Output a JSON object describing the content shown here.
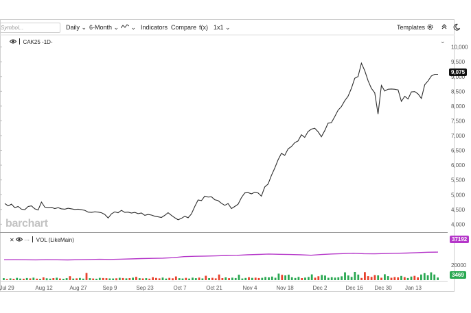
{
  "toolbar": {
    "symbol_placeholder": "Symbol...",
    "interval": "Daily",
    "range": "6-Month",
    "indicators": "Indicators",
    "compare": "Compare",
    "fx": "f(x)",
    "layout": "1x1",
    "templates": "Templates",
    "chevron": "⌄",
    "chart_type_icon": "line-chart-icon",
    "settings_icon": "gear-icon",
    "collapse_icon": "double-chevron-up-icon",
    "theme_icon": "dark-mode-icon"
  },
  "main_legend": {
    "symbol": "CAK25 -1D-",
    "eye_icon": "eye-icon",
    "collapse": "⌄"
  },
  "vol_legend": {
    "label": "VOL (LikeMain)",
    "close_icon": "close-icon",
    "eye_icon": "eye-icon",
    "more": "···"
  },
  "watermark": "barchart",
  "badges": {
    "price": "9,075",
    "vol_avg": "37192",
    "volume": "3469"
  },
  "colors": {
    "price_line": "#2b2b2b",
    "avg_line": "#b537c9",
    "up": "#2aa852",
    "down": "#e8412c",
    "price_badge": "#111111",
    "avg_badge": "#b537c9",
    "vol_badge": "#2aa852"
  },
  "chart_data": [
    {
      "type": "line",
      "name": "price",
      "symbol": "CAK25",
      "x_ticks": [
        "Jul 29",
        "Aug 12",
        "Aug 27",
        "Sep 9",
        "Sep 23",
        "Oct 7",
        "Oct 21",
        "Nov 4",
        "Nov 18",
        "Dec 2",
        "Dec 16",
        "Dec 30",
        "Jan 13"
      ],
      "y_ticks": [
        "10,000",
        "9,500",
        "9,000",
        "8,500",
        "8,000",
        "7,500",
        "7,000",
        "6,500",
        "6,000",
        "5,500",
        "5,000",
        "4,500",
        "4,000"
      ],
      "ylim": [
        3800,
        10200
      ],
      "last_value": 9075,
      "values": [
        4700,
        4620,
        4680,
        4560,
        4600,
        4510,
        4490,
        4600,
        4620,
        4520,
        4480,
        4750,
        4580,
        4560,
        4570,
        4530,
        4560,
        4520,
        4510,
        4540,
        4520,
        4500,
        4510,
        4490,
        4470,
        4410,
        4400,
        4420,
        4410,
        4390,
        4330,
        4210,
        4350,
        4420,
        4390,
        4470,
        4400,
        4410,
        4380,
        4400,
        4360,
        4380,
        4300,
        4330,
        4310,
        4270,
        4250,
        4230,
        4300,
        4390,
        4300,
        4220,
        4150,
        4200,
        4270,
        4220,
        4350,
        4600,
        4820,
        4800,
        4950,
        4920,
        4930,
        4830,
        4800,
        4710,
        4640,
        4700,
        4530,
        4600,
        4680,
        4900,
        5060,
        5070,
        5030,
        5080,
        5060,
        4950,
        5260,
        5360,
        5650,
        5900,
        6180,
        6400,
        6330,
        6550,
        6630,
        6760,
        6820,
        7030,
        6940,
        7140,
        7220,
        7250,
        7130,
        6960,
        7170,
        7420,
        7440,
        7640,
        7860,
        7980,
        8180,
        8330,
        8600,
        8940,
        9000,
        9450,
        9200,
        8860,
        8600,
        8450,
        7730,
        8700,
        8510,
        8570,
        8580,
        8570,
        8550,
        8160,
        8330,
        8240,
        8480,
        8490,
        8410,
        8260,
        8720,
        8850,
        9020,
        9075,
        9075
      ]
    },
    {
      "type": "bar",
      "name": "VOL (LikeMain)",
      "y_ticks": [
        "20000"
      ],
      "ylim": [
        0,
        60000
      ],
      "avg_last": 37192,
      "avg_line": [
        27000,
        27100,
        27000,
        26900,
        27100,
        27000,
        26800,
        27100,
        27400,
        27600,
        27500,
        27800,
        28200,
        28600,
        28900,
        29200,
        29800,
        31200,
        31600,
        31900,
        32200,
        32700,
        32900,
        33600,
        34100,
        34600,
        34300,
        34000,
        33600,
        33000,
        34000,
        34700,
        35200,
        35600,
        35100,
        34900,
        35300,
        35600,
        35900,
        36500,
        37000,
        37192
      ],
      "volume_last": 3469,
      "volumes": [
        2600,
        1500,
        2400,
        1800,
        3000,
        2100,
        1900,
        2800,
        2300,
        3300,
        2000,
        1700,
        3600,
        2500,
        2000,
        2700,
        3200,
        2200,
        1800,
        2600,
        5300,
        2100,
        2400,
        2900,
        2000,
        9500,
        2600,
        2200,
        1900,
        3000,
        2800,
        2600,
        2300,
        2200,
        2500,
        3100,
        2800,
        2400,
        2700,
        3300,
        4400,
        2600,
        2300,
        2600,
        2000,
        3800,
        2900,
        2400,
        3400,
        2100,
        3000,
        2500,
        4900,
        2600,
        2200,
        3000,
        2100,
        3300,
        2600,
        3400,
        2300,
        5800,
        2700,
        3100,
        2400,
        7500,
        2700,
        3600,
        2600,
        3300,
        2800,
        7200,
        2200,
        2900,
        3800,
        3000,
        3300,
        2800,
        3100,
        4200,
        3600,
        4700,
        3200,
        8600,
        7000,
        6300,
        7300,
        3800,
        2900,
        4300,
        2700,
        3400,
        4200,
        7600,
        3300,
        5200,
        6800,
        6100,
        3200,
        3900,
        3400,
        3700,
        5100,
        10400,
        6200,
        4300,
        10900,
        7400,
        2900,
        10600,
        5400,
        4300,
        6600,
        6300,
        3200,
        7800,
        5400,
        3200,
        4100,
        3600,
        5600,
        4000,
        2800,
        4700,
        5700,
        3600,
        7500,
        9300,
        6400,
        10400,
        7500,
        3469
      ],
      "up": [
        1,
        0,
        1,
        0,
        1,
        1,
        0,
        1,
        0,
        1,
        0,
        1,
        0,
        1,
        1,
        0,
        1,
        0,
        1,
        1,
        0,
        1,
        0,
        1,
        1,
        0,
        1,
        0,
        1,
        1,
        0,
        0,
        1,
        1,
        0,
        1,
        0,
        1,
        0,
        1,
        0,
        1,
        0,
        1,
        0,
        0,
        0,
        0,
        1,
        1,
        0,
        0,
        0,
        1,
        1,
        0,
        1,
        1,
        1,
        0,
        1,
        0,
        1,
        0,
        0,
        0,
        0,
        1,
        0,
        1,
        1,
        1,
        1,
        1,
        0,
        1,
        0,
        0,
        1,
        1,
        1,
        1,
        1,
        1,
        0,
        1,
        1,
        1,
        1,
        1,
        0,
        1,
        1,
        1,
        0,
        0,
        1,
        1,
        1,
        1,
        1,
        1,
        1,
        1,
        1,
        1,
        1,
        1,
        0,
        0,
        0,
        0,
        0,
        1,
        0,
        1,
        1,
        0,
        0,
        0,
        1,
        0,
        1,
        1,
        0,
        0,
        1,
        1,
        1,
        1,
        1
      ]
    }
  ]
}
